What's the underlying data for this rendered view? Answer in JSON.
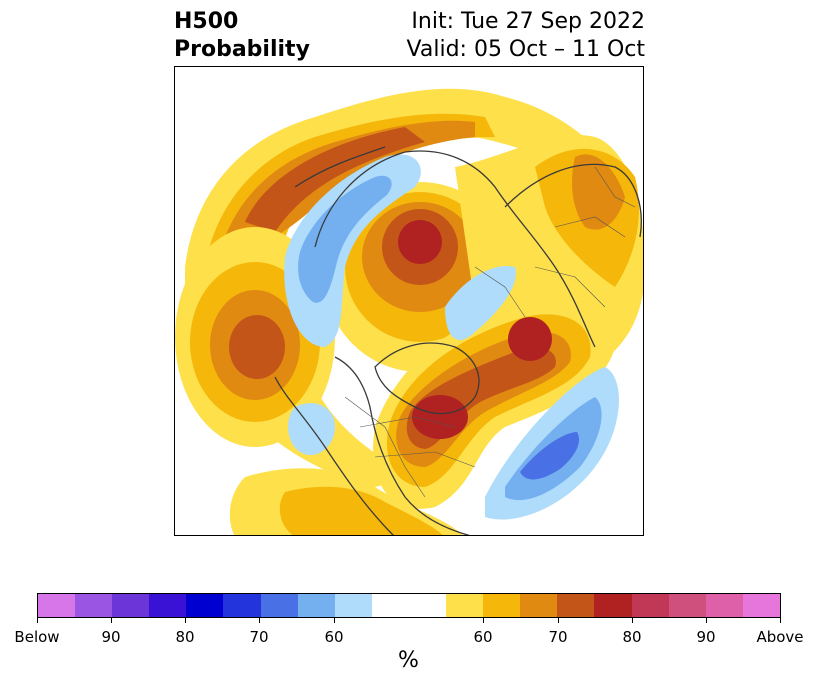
{
  "title": {
    "line1_left": "H500",
    "line2_left": "Probability",
    "line1_right": "Init: Tue 27 Sep 2022",
    "line2_right": "Valid: 05 Oct – 11 Oct"
  },
  "colors": {
    "below": [
      "#d676e8",
      "#9a56e2",
      "#6b35d8",
      "#3a12d6",
      "#0000d0",
      "#2434dc",
      "#4a70e6",
      "#74b0f0",
      "#aedcfa"
    ],
    "neutral": "#ffffff",
    "above": [
      "#fde04a",
      "#f5b70a",
      "#e08a12",
      "#c45518",
      "#b02222",
      "#c03855",
      "#cf4f7d",
      "#dd60a8",
      "#e676dc"
    ]
  },
  "colorbar": {
    "ticks": [
      "Below",
      "90",
      "80",
      "70",
      "60",
      "60",
      "70",
      "80",
      "90",
      "Above"
    ],
    "unit": "%"
  }
}
